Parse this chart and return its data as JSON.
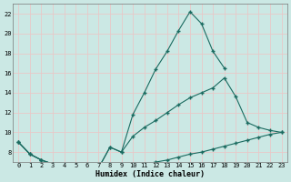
{
  "xlabel": "Humidex (Indice chaleur)",
  "bg_color": "#cbe8e4",
  "line_color": "#1a6b60",
  "grid_color": "#e8c8c8",
  "xlim": [
    -0.5,
    23.5
  ],
  "ylim": [
    7,
    23
  ],
  "yticks": [
    8,
    10,
    12,
    14,
    16,
    18,
    20,
    22
  ],
  "xticks": [
    0,
    1,
    2,
    3,
    4,
    5,
    6,
    7,
    8,
    9,
    10,
    11,
    12,
    13,
    14,
    15,
    16,
    17,
    18,
    19,
    20,
    21,
    22,
    23
  ],
  "series_max": {
    "x": [
      0,
      1,
      2,
      3,
      4,
      5,
      6,
      7,
      8,
      9,
      10,
      11,
      12,
      13,
      14,
      15,
      16,
      17,
      18
    ],
    "y": [
      9.0,
      7.8,
      7.2,
      6.8,
      6.6,
      6.4,
      6.5,
      6.4,
      8.5,
      8.0,
      11.8,
      14.0,
      16.4,
      18.2,
      20.3,
      22.2,
      21.0,
      18.2,
      16.5
    ]
  },
  "series_mid": {
    "x": [
      0,
      1,
      2,
      3,
      4,
      5,
      6,
      7,
      8,
      9,
      10,
      11,
      12,
      13,
      14,
      15,
      16,
      17,
      18,
      19,
      20,
      21,
      22,
      23
    ],
    "y": [
      9.0,
      7.8,
      7.2,
      6.8,
      6.6,
      6.4,
      6.5,
      6.4,
      8.5,
      8.0,
      9.6,
      10.5,
      11.2,
      12.0,
      12.8,
      13.5,
      14.0,
      14.5,
      15.5,
      13.6,
      11.0,
      10.5,
      10.2,
      10.0
    ]
  },
  "series_min": {
    "x": [
      0,
      1,
      2,
      3,
      4,
      5,
      6,
      7,
      8,
      9,
      10,
      11,
      12,
      13,
      14,
      15,
      16,
      17,
      18,
      19,
      20,
      21,
      22,
      23
    ],
    "y": [
      9.0,
      7.8,
      7.2,
      6.8,
      6.6,
      6.4,
      6.5,
      6.4,
      6.4,
      6.4,
      6.6,
      6.8,
      7.0,
      7.2,
      7.5,
      7.8,
      8.0,
      8.3,
      8.6,
      8.9,
      9.2,
      9.5,
      9.8,
      10.0
    ]
  }
}
